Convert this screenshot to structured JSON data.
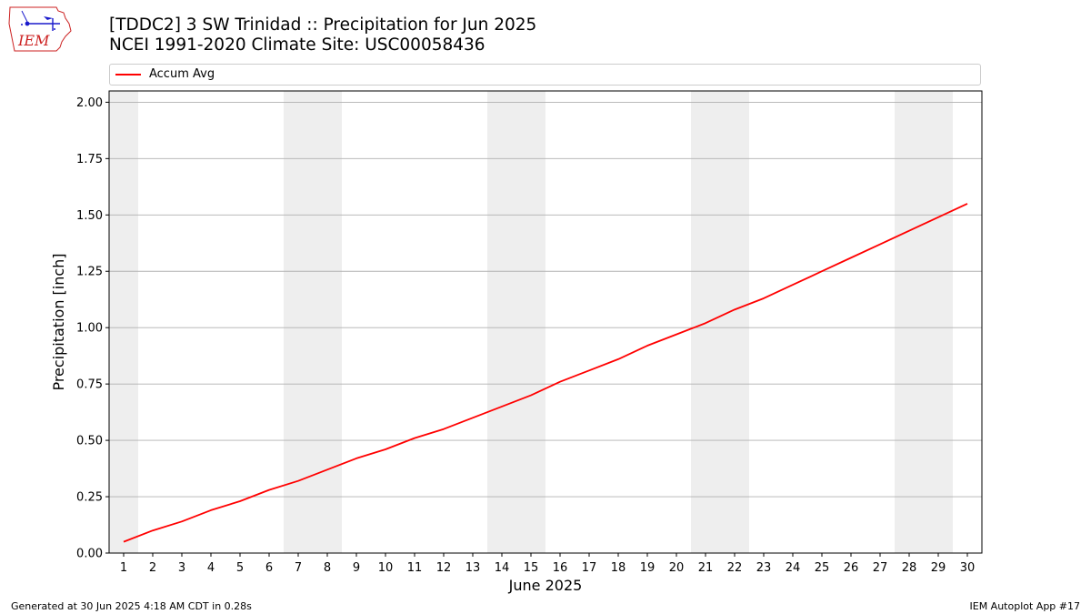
{
  "header": {
    "title_line1": "[TDDC2] 3 SW Trinidad :: Precipitation for Jun 2025",
    "title_line2": "NCEI 1991-2020 Climate Site: USC00058436",
    "logo_text": "IEM"
  },
  "legend": {
    "label": "Accum Avg",
    "position": "top"
  },
  "footer": {
    "generated": "Generated at 30 Jun 2025 4:18 AM CDT in 0.28s",
    "app": "IEM Autoplot App #17"
  },
  "colors": {
    "line": "#ff0000",
    "weekend_band": "#eeeeee",
    "grid": "#b0b0b0",
    "logo": "#1a1acc",
    "logo_text": "#cc2222"
  },
  "chart_data": {
    "type": "line",
    "title": "[TDDC2] 3 SW Trinidad :: Precipitation for Jun 2025",
    "subtitle": "NCEI 1991-2020 Climate Site: USC00058436",
    "xlabel": "June 2025",
    "ylabel": "Precipitation [inch]",
    "xlim": [
      0.5,
      30.5
    ],
    "ylim": [
      0,
      2.05
    ],
    "yticks": [
      0.0,
      0.25,
      0.5,
      0.75,
      1.0,
      1.25,
      1.5,
      1.75,
      2.0
    ],
    "ytick_labels": [
      "0.00",
      "0.25",
      "0.50",
      "0.75",
      "1.00",
      "1.25",
      "1.50",
      "1.75",
      "2.00"
    ],
    "x": [
      1,
      2,
      3,
      4,
      5,
      6,
      7,
      8,
      9,
      10,
      11,
      12,
      13,
      14,
      15,
      16,
      17,
      18,
      19,
      20,
      21,
      22,
      23,
      24,
      25,
      26,
      27,
      28,
      29,
      30
    ],
    "xtick_labels": [
      "1",
      "2",
      "3",
      "4",
      "5",
      "6",
      "7",
      "8",
      "9",
      "10",
      "11",
      "12",
      "13",
      "14",
      "15",
      "16",
      "17",
      "18",
      "19",
      "20",
      "21",
      "22",
      "23",
      "24",
      "25",
      "26",
      "27",
      "28",
      "29",
      "30"
    ],
    "grid": "horizontal",
    "weekend_spans": [
      [
        0.5,
        1.5
      ],
      [
        6.5,
        8.5
      ],
      [
        13.5,
        15.5
      ],
      [
        20.5,
        22.5
      ],
      [
        27.5,
        29.5
      ]
    ],
    "series": [
      {
        "name": "Accum Avg",
        "color": "#ff0000",
        "values": [
          0.05,
          0.1,
          0.14,
          0.19,
          0.23,
          0.28,
          0.32,
          0.37,
          0.42,
          0.46,
          0.51,
          0.55,
          0.6,
          0.65,
          0.7,
          0.76,
          0.81,
          0.86,
          0.92,
          0.97,
          1.02,
          1.08,
          1.13,
          1.19,
          1.25,
          1.31,
          1.37,
          1.43,
          1.49,
          1.55
        ]
      }
    ]
  }
}
